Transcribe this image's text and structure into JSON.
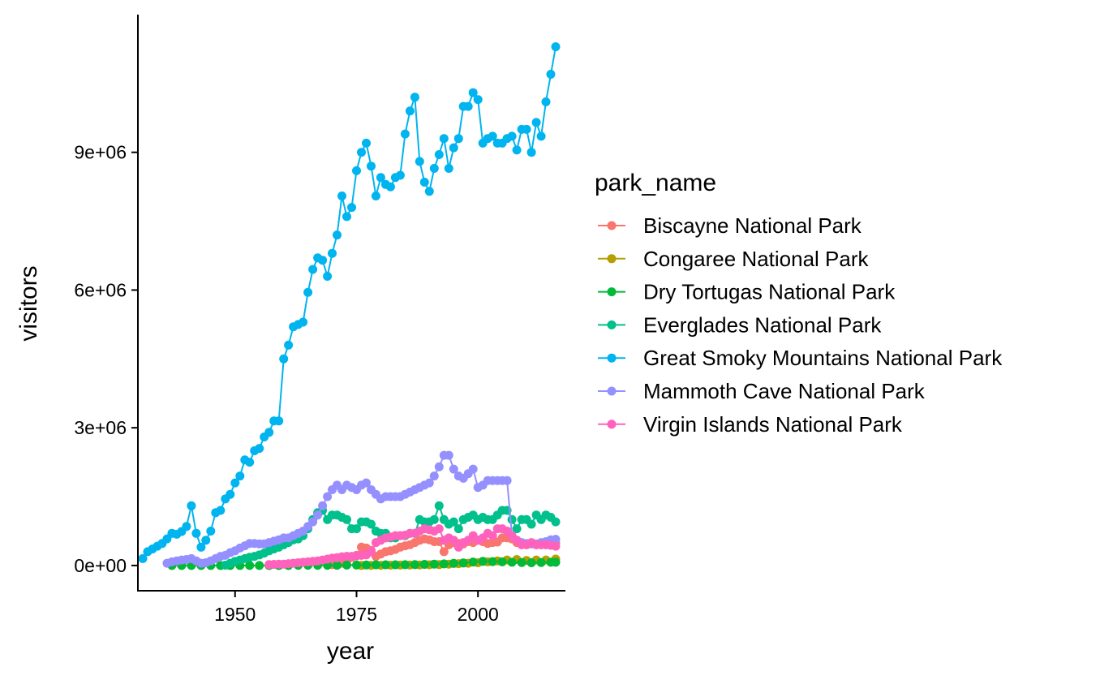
{
  "chart_data": {
    "type": "line",
    "xlabel": "year",
    "ylabel": "visitors",
    "xlim": [
      1930,
      2018
    ],
    "ylim": [
      -550000,
      12000000
    ],
    "x_ticks": [
      1950,
      1975,
      2000
    ],
    "x_tick_labels": [
      "1950",
      "1975",
      "2000"
    ],
    "y_ticks": [
      0,
      3000000,
      6000000,
      9000000
    ],
    "y_tick_labels": [
      "0e+00",
      "3e+06",
      "6e+06",
      "9e+06"
    ],
    "grid": false,
    "legend": {
      "title": "park_name",
      "position": "right"
    },
    "series": [
      {
        "name": "Biscayne National Park",
        "color": "#F8766D",
        "x": [
          1970,
          1971,
          1972,
          1973,
          1974,
          1975,
          1976,
          1977,
          1978,
          1979,
          1980,
          1981,
          1982,
          1983,
          1984,
          1985,
          1986,
          1987,
          1988,
          1989,
          1990,
          1991,
          1992,
          1993,
          1994,
          1995,
          1996,
          1997,
          1998,
          1999,
          2000,
          2001,
          2002,
          2003,
          2004,
          2005,
          2006,
          2007,
          2008,
          2009,
          2010,
          2011,
          2012,
          2013,
          2014,
          2015,
          2016
        ],
        "y": [
          20000,
          30000,
          50000,
          100000,
          180000,
          220000,
          400000,
          380000,
          330000,
          200000,
          250000,
          300000,
          320000,
          350000,
          400000,
          430000,
          450000,
          500000,
          550000,
          580000,
          560000,
          520000,
          520000,
          300000,
          450000,
          500000,
          480000,
          470000,
          520000,
          500000,
          550000,
          520000,
          480000,
          500000,
          510000,
          600000,
          600000,
          580000,
          500000,
          480000,
          470000,
          480000,
          460000,
          490000,
          480000,
          450000,
          490000
        ]
      },
      {
        "name": "Congaree National Park",
        "color": "#B79F00",
        "x": [
          1976,
          1978,
          1980,
          1982,
          1984,
          1986,
          1988,
          1990,
          1992,
          1994,
          1996,
          1998,
          2000,
          2002,
          2004,
          2006,
          2008,
          2010,
          2012,
          2014,
          2016
        ],
        "y": [
          2000,
          4000,
          5000,
          7000,
          8000,
          10000,
          12000,
          15000,
          20000,
          30000,
          40000,
          50000,
          60000,
          80000,
          100000,
          120000,
          130000,
          110000,
          120000,
          120000,
          140000
        ]
      },
      {
        "name": "Dry Tortugas National Park",
        "color": "#00BA38",
        "x": [
          1937,
          1939,
          1941,
          1943,
          1945,
          1947,
          1949,
          1951,
          1953,
          1955,
          1957,
          1959,
          1961,
          1963,
          1965,
          1967,
          1969,
          1971,
          1973,
          1975,
          1977,
          1979,
          1981,
          1983,
          1985,
          1987,
          1989,
          1991,
          1993,
          1995,
          1997,
          1999,
          2001,
          2003,
          2005,
          2007,
          2009,
          2011,
          2013,
          2015,
          2016
        ],
        "y": [
          0,
          0,
          0,
          0,
          0,
          0,
          0,
          0,
          0,
          0,
          0,
          0,
          0,
          5000,
          5000,
          5000,
          5000,
          5000,
          8000,
          10000,
          12000,
          15000,
          15000,
          15000,
          18000,
          20000,
          25000,
          30000,
          35000,
          45000,
          55000,
          75000,
          90000,
          85000,
          80000,
          70000,
          65000,
          60000,
          65000,
          70000,
          70000
        ]
      },
      {
        "name": "Everglades National Park",
        "color": "#00C08B",
        "x": [
          1948,
          1949,
          1950,
          1951,
          1952,
          1953,
          1954,
          1955,
          1956,
          1957,
          1958,
          1959,
          1960,
          1961,
          1962,
          1963,
          1964,
          1965,
          1966,
          1967,
          1968,
          1969,
          1970,
          1971,
          1972,
          1973,
          1974,
          1975,
          1976,
          1977,
          1978,
          1979,
          1980,
          1981,
          1982,
          1983,
          1984,
          1985,
          1986,
          1987,
          1988,
          1989,
          1990,
          1991,
          1992,
          1993,
          1994,
          1995,
          1996,
          1997,
          1998,
          1999,
          2000,
          2001,
          2002,
          2003,
          2004,
          2005,
          2006,
          2007,
          2008,
          2009,
          2010,
          2011,
          2012,
          2013,
          2014,
          2015,
          2016
        ],
        "y": [
          7000,
          50000,
          90000,
          120000,
          150000,
          180000,
          200000,
          230000,
          270000,
          320000,
          360000,
          400000,
          450000,
          500000,
          560000,
          580000,
          650000,
          800000,
          1000000,
          1150000,
          1200000,
          1000000,
          1100000,
          1100000,
          1050000,
          1000000,
          800000,
          800000,
          950000,
          950000,
          900000,
          750000,
          700000,
          700000,
          600000,
          600000,
          650000,
          650000,
          700000,
          700000,
          1000000,
          950000,
          950000,
          1000000,
          1300000,
          1000000,
          900000,
          950000,
          800000,
          1000000,
          1050000,
          1100000,
          1000000,
          1050000,
          1000000,
          1000000,
          1100000,
          1200000,
          1200000,
          1000000,
          800000,
          1000000,
          1000000,
          900000,
          1100000,
          1000000,
          1100000,
          1050000,
          950000
        ]
      },
      {
        "name": "Great Smoky Mountains National Park",
        "color": "#00B4EF",
        "x": [
          1931,
          1932,
          1933,
          1934,
          1935,
          1936,
          1937,
          1938,
          1939,
          1940,
          1941,
          1942,
          1943,
          1944,
          1945,
          1946,
          1947,
          1948,
          1949,
          1950,
          1951,
          1952,
          1953,
          1954,
          1955,
          1956,
          1957,
          1958,
          1959,
          1960,
          1961,
          1962,
          1963,
          1964,
          1965,
          1966,
          1967,
          1968,
          1969,
          1970,
          1971,
          1972,
          1973,
          1974,
          1975,
          1976,
          1977,
          1978,
          1979,
          1980,
          1981,
          1982,
          1983,
          1984,
          1985,
          1986,
          1987,
          1988,
          1989,
          1990,
          1991,
          1992,
          1993,
          1994,
          1995,
          1996,
          1997,
          1998,
          1999,
          2000,
          2001,
          2002,
          2003,
          2004,
          2005,
          2006,
          2007,
          2008,
          2009,
          2010,
          2011,
          2012,
          2013,
          2014,
          2015,
          2016
        ],
        "y": [
          150000,
          300000,
          360000,
          420000,
          480000,
          580000,
          700000,
          680000,
          740000,
          850000,
          1300000,
          700000,
          400000,
          550000,
          750000,
          1150000,
          1200000,
          1450000,
          1550000,
          1800000,
          1950000,
          2300000,
          2250000,
          2500000,
          2550000,
          2800000,
          2900000,
          3150000,
          3150000,
          4500000,
          4800000,
          5200000,
          5250000,
          5300000,
          5950000,
          6450000,
          6700000,
          6650000,
          6300000,
          6800000,
          7200000,
          8050000,
          7600000,
          7800000,
          8600000,
          9000000,
          9200000,
          8700000,
          8050000,
          8450000,
          8300000,
          8250000,
          8450000,
          8500000,
          9400000,
          9900000,
          10200000,
          8800000,
          8350000,
          8150000,
          8650000,
          8950000,
          9300000,
          8650000,
          9100000,
          9300000,
          10000000,
          10000000,
          10300000,
          10150000,
          9200000,
          9300000,
          9350000,
          9200000,
          9200000,
          9300000,
          9350000,
          9050000,
          9500000,
          9500000,
          9000000,
          9650000,
          9350000,
          10100000,
          10700000,
          11300000
        ]
      },
      {
        "name": "Mammoth Cave National Park",
        "color": "#9590FF",
        "x": [
          1936,
          1937,
          1938,
          1939,
          1940,
          1941,
          1942,
          1943,
          1944,
          1945,
          1946,
          1947,
          1948,
          1949,
          1950,
          1951,
          1952,
          1953,
          1954,
          1955,
          1956,
          1957,
          1958,
          1959,
          1960,
          1961,
          1962,
          1963,
          1964,
          1965,
          1966,
          1967,
          1968,
          1969,
          1970,
          1971,
          1972,
          1973,
          1974,
          1975,
          1976,
          1977,
          1978,
          1979,
          1980,
          1981,
          1982,
          1983,
          1984,
          1985,
          1986,
          1987,
          1988,
          1989,
          1990,
          1991,
          1992,
          1993,
          1994,
          1995,
          1996,
          1997,
          1998,
          1999,
          2000,
          2001,
          2002,
          2003,
          2004,
          2005,
          2006,
          2007,
          2008,
          2009,
          2010,
          2011,
          2012,
          2013,
          2014,
          2015,
          2016
        ],
        "y": [
          50000,
          80000,
          100000,
          120000,
          130000,
          150000,
          100000,
          50000,
          60000,
          100000,
          150000,
          200000,
          220000,
          280000,
          320000,
          380000,
          430000,
          480000,
          480000,
          470000,
          470000,
          500000,
          530000,
          560000,
          600000,
          600000,
          650000,
          700000,
          750000,
          850000,
          950000,
          1100000,
          1300000,
          1500000,
          1650000,
          1750000,
          1650000,
          1750000,
          1700000,
          1650000,
          1750000,
          1800000,
          1650000,
          1550000,
          1450000,
          1500000,
          1500000,
          1500000,
          1500000,
          1550000,
          1600000,
          1650000,
          1700000,
          1750000,
          1800000,
          1950000,
          2150000,
          2400000,
          2400000,
          2100000,
          1950000,
          1900000,
          2000000,
          2100000,
          1700000,
          1750000,
          1850000,
          1850000,
          1850000,
          1850000,
          1850000,
          650000,
          550000,
          500000,
          480000,
          470000,
          470000,
          500000,
          520000,
          560000,
          570000
        ]
      },
      {
        "name": "Virgin Islands National Park",
        "color": "#FF62BC",
        "x": [
          1957,
          1958,
          1959,
          1960,
          1961,
          1962,
          1963,
          1964,
          1965,
          1966,
          1967,
          1968,
          1969,
          1970,
          1971,
          1972,
          1973,
          1974,
          1975,
          1976,
          1977,
          1978,
          1979,
          1980,
          1981,
          1982,
          1983,
          1984,
          1985,
          1986,
          1987,
          1988,
          1989,
          1990,
          1991,
          1992,
          1993,
          1994,
          1995,
          1996,
          1997,
          1998,
          1999,
          2000,
          2001,
          2002,
          2003,
          2004,
          2005,
          2006,
          2007,
          2008,
          2009,
          2010,
          2011,
          2012,
          2013,
          2014,
          2015,
          2016
        ],
        "y": [
          20000,
          25000,
          30000,
          30000,
          40000,
          50000,
          60000,
          70000,
          80000,
          90000,
          100000,
          120000,
          140000,
          160000,
          170000,
          190000,
          200000,
          200000,
          210000,
          220000,
          230000,
          300000,
          500000,
          550000,
          600000,
          620000,
          650000,
          650000,
          660000,
          700000,
          700000,
          750000,
          800000,
          780000,
          750000,
          800000,
          550000,
          600000,
          550000,
          400000,
          500000,
          550000,
          650000,
          550000,
          600000,
          700000,
          650000,
          800000,
          800000,
          750000,
          650000,
          550000,
          450000,
          450000,
          500000,
          450000,
          450000,
          450000,
          440000,
          420000
        ]
      }
    ]
  }
}
